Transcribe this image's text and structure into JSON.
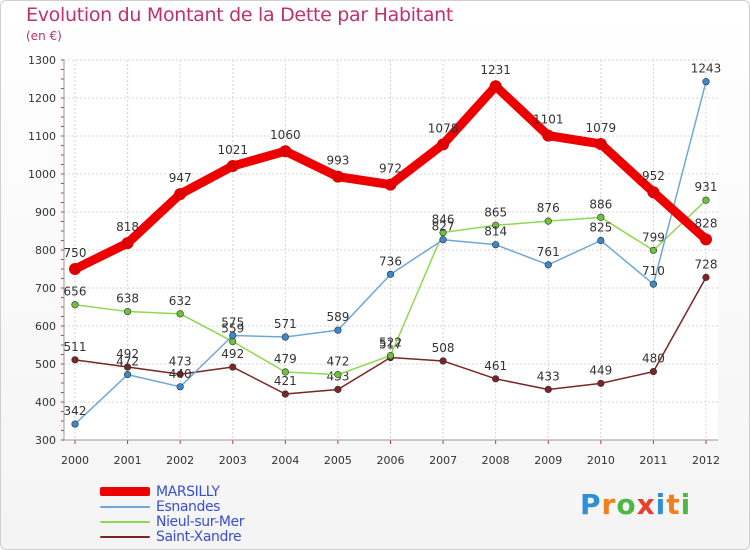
{
  "header": {
    "title": "Evolution du Montant de la Dette par Habitant",
    "unit": "(en €)"
  },
  "logo": {
    "text": "Proxiti",
    "letter_colors": [
      "#2e8fd9",
      "#f07f1c",
      "#4db848",
      "#e8402f",
      "#2e8fd9",
      "#f07f1c",
      "#4db848"
    ]
  },
  "chart_data": {
    "type": "line",
    "title": "Evolution du Montant de la Dette par Habitant",
    "subtitle": "(en €)",
    "xlabel": "",
    "ylabel": "",
    "categories": [
      "2000",
      "2001",
      "2002",
      "2003",
      "2004",
      "2005",
      "2006",
      "2007",
      "2008",
      "2009",
      "2010",
      "2011",
      "2012"
    ],
    "y_ticks": [
      "300",
      "400",
      "500",
      "600",
      "700",
      "800",
      "900",
      "1000",
      "1100",
      "1200",
      "1300"
    ],
    "ylim": [
      300,
      1300
    ],
    "grid": true,
    "legend_position": "bottom-left",
    "series": [
      {
        "name": "Saint-Xandre",
        "color": "#7a2626",
        "marker": "#7a2626",
        "values": [
          511,
          492,
          473,
          492,
          421,
          433,
          517,
          508,
          461,
          433,
          449,
          480,
          728
        ],
        "labels": [
          "511",
          "492",
          "473",
          "492",
          "421",
          "433",
          "517",
          "508",
          "461",
          "433",
          "449",
          "480",
          "728"
        ]
      },
      {
        "name": "Nieul-sur-Mer",
        "color": "#8fd94f",
        "marker": "#6cc23a",
        "values": [
          656,
          638,
          632,
          559,
          479,
          472,
          522,
          846,
          865,
          876,
          886,
          799,
          931
        ],
        "labels": [
          "656",
          "638",
          "632",
          "559",
          "479",
          "472",
          "522",
          "846",
          "865",
          "876",
          "886",
          "799",
          "931"
        ]
      },
      {
        "name": "Esnandes",
        "color": "#6fa8d6",
        "marker": "#3b87c8",
        "values": [
          342,
          472,
          440,
          575,
          571,
          589,
          736,
          827,
          814,
          761,
          825,
          710,
          1243
        ],
        "labels": [
          "342",
          "472",
          "440",
          "575",
          "571",
          "589",
          "736",
          "827",
          "814",
          "761",
          "825",
          "710",
          "1243"
        ]
      },
      {
        "name": "MARSILLY",
        "color": "#ee0000",
        "marker": "#e00000",
        "values": [
          750,
          818,
          947,
          1021,
          1060,
          993,
          972,
          1078,
          1231,
          1101,
          1079,
          952,
          828
        ],
        "labels": [
          "750",
          "818",
          "947",
          "1021",
          "1060",
          "993",
          "972",
          "1078",
          "1231",
          "1101",
          "1079",
          "952",
          "828"
        ]
      }
    ]
  },
  "legend": {
    "items": [
      {
        "label": "MARSILLY",
        "color": "#ee0000",
        "thickness": 9
      },
      {
        "label": "Esnandes",
        "color": "#6fa8d6",
        "thickness": 2
      },
      {
        "label": "Nieul-sur-Mer",
        "color": "#8fd94f",
        "thickness": 2
      },
      {
        "label": "Saint-Xandre",
        "color": "#7a2626",
        "thickness": 2
      }
    ]
  }
}
